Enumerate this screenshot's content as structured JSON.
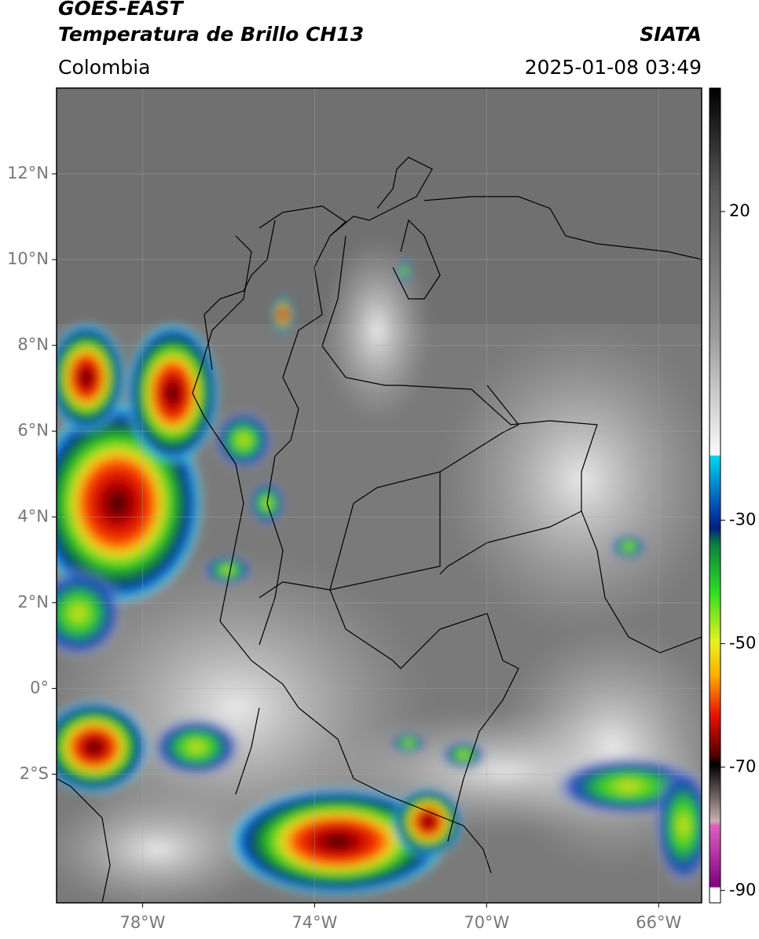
{
  "header": {
    "satellite": "GOES-EAST",
    "product": "Temperatura de Brillo CH13",
    "source": "SIATA",
    "region": "Colombia",
    "datetime": "2025-01-08 03:49"
  },
  "map": {
    "xlim": [
      -80,
      -65
    ],
    "ylim": [
      -5,
      14
    ],
    "xticks": [
      {
        "value": -78,
        "label": "78°W"
      },
      {
        "value": -74,
        "label": "74°W"
      },
      {
        "value": -70,
        "label": "70°W"
      },
      {
        "value": -66,
        "label": "66°W"
      }
    ],
    "yticks": [
      {
        "value": 12,
        "label": "12°N"
      },
      {
        "value": 10,
        "label": "10°N"
      },
      {
        "value": 8,
        "label": "8°N"
      },
      {
        "value": 6,
        "label": "6°N"
      },
      {
        "value": 4,
        "label": "4°N"
      },
      {
        "value": 2,
        "label": "2°N"
      },
      {
        "value": 0,
        "label": "0°"
      },
      {
        "value": -2,
        "label": "2°S"
      }
    ]
  },
  "colorbar": {
    "lim": [
      -92,
      40
    ],
    "ticks": [
      20,
      -30,
      -50,
      -70,
      -90
    ]
  }
}
